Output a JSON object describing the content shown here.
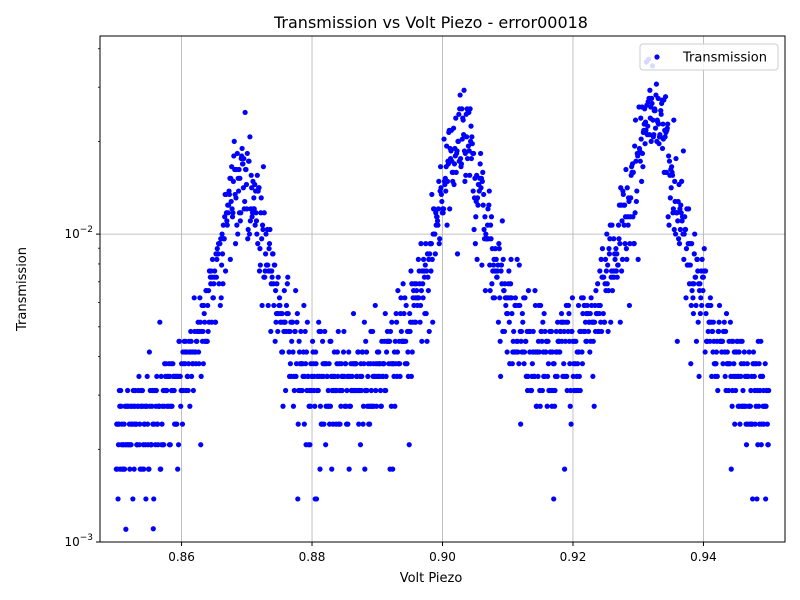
{
  "chart_data": {
    "type": "scatter",
    "title": "Transmission vs Volt Piezo - error00018",
    "xlabel": "Volt Piezo",
    "ylabel": "Transmission",
    "xlim": [
      0.8475,
      0.9525
    ],
    "ylim": [
      0.001,
      0.044
    ],
    "yscale": "log",
    "grid": true,
    "legend_position": "top-right",
    "x_ticks": [
      {
        "value": 0.86,
        "label": "0.86"
      },
      {
        "value": 0.88,
        "label": "0.88"
      },
      {
        "value": 0.9,
        "label": "0.90"
      },
      {
        "value": 0.92,
        "label": "0.92"
      },
      {
        "value": 0.94,
        "label": "0.94"
      }
    ],
    "y_ticks": [
      {
        "value": 0.001,
        "base": "10",
        "exp": "−3"
      },
      {
        "value": 0.01,
        "base": "10",
        "exp": "−2"
      }
    ],
    "series": [
      {
        "name": "Transmission",
        "color": "#0000ff",
        "marker": "circle",
        "x_start": 0.85,
        "x_end": 0.95,
        "n_points": 1500,
        "baseline": 0.0018,
        "peaks": [
          {
            "center": 0.8695,
            "amplitude": 0.0145,
            "width": 0.0032
          },
          {
            "center": 0.903,
            "amplitude": 0.0185,
            "width": 0.0035
          },
          {
            "center": 0.9322,
            "amplitude": 0.0245,
            "width": 0.0033
          }
        ],
        "quantization_step": 0.000345
      }
    ]
  }
}
